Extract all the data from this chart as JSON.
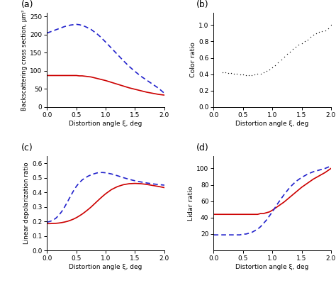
{
  "panel_labels": [
    "(a)",
    "(b)",
    "(c)",
    "(d)"
  ],
  "xlabel": "Distortion angle ξ, deg",
  "xlim": [
    0.0,
    2.0
  ],
  "xticks": [
    0.0,
    0.5,
    1.0,
    1.5,
    2.0
  ],
  "panel_a": {
    "ylabel": "Backscattering cross section, μm²",
    "ylim": [
      0,
      260
    ],
    "yticks": [
      0,
      50,
      100,
      150,
      200,
      250
    ],
    "red_x": [
      0.0,
      0.05,
      0.1,
      0.15,
      0.2,
      0.25,
      0.3,
      0.35,
      0.4,
      0.45,
      0.5,
      0.55,
      0.6,
      0.65,
      0.7,
      0.75,
      0.8,
      0.85,
      0.9,
      0.95,
      1.0,
      1.1,
      1.2,
      1.3,
      1.4,
      1.5,
      1.6,
      1.7,
      1.8,
      1.9,
      2.0
    ],
    "red_y": [
      87,
      87,
      87,
      87,
      87,
      87,
      87,
      87,
      87,
      87,
      87,
      86,
      86,
      85,
      84,
      83,
      81,
      79,
      77,
      75,
      73,
      68,
      63,
      58,
      53,
      49,
      45,
      41,
      38,
      35,
      33
    ],
    "blue_x": [
      0.0,
      0.05,
      0.1,
      0.15,
      0.2,
      0.25,
      0.3,
      0.35,
      0.4,
      0.45,
      0.5,
      0.55,
      0.6,
      0.65,
      0.7,
      0.75,
      0.8,
      0.85,
      0.9,
      0.95,
      1.0,
      1.1,
      1.2,
      1.3,
      1.4,
      1.5,
      1.6,
      1.7,
      1.8,
      1.9,
      2.0
    ],
    "blue_y": [
      204,
      207,
      210,
      213,
      216,
      219,
      222,
      224,
      226,
      227,
      228,
      227,
      225,
      222,
      218,
      214,
      208,
      202,
      195,
      187,
      179,
      162,
      145,
      128,
      112,
      98,
      85,
      74,
      63,
      52,
      38
    ]
  },
  "panel_b": {
    "ylabel": "Color ratio",
    "ylim": [
      0.0,
      1.15
    ],
    "yticks": [
      0.0,
      0.2,
      0.4,
      0.6,
      0.8,
      1.0
    ],
    "black_x": [
      0.15,
      0.2,
      0.25,
      0.3,
      0.35,
      0.4,
      0.45,
      0.5,
      0.55,
      0.6,
      0.65,
      0.7,
      0.75,
      0.8,
      0.85,
      0.9,
      0.95,
      1.0,
      1.05,
      1.1,
      1.15,
      1.2,
      1.25,
      1.3,
      1.35,
      1.4,
      1.45,
      1.5,
      1.55,
      1.6,
      1.65,
      1.7,
      1.75,
      1.8,
      1.85,
      1.9,
      1.95,
      2.0
    ],
    "black_y": [
      0.425,
      0.422,
      0.418,
      0.413,
      0.408,
      0.403,
      0.398,
      0.395,
      0.393,
      0.392,
      0.393,
      0.396,
      0.402,
      0.41,
      0.423,
      0.438,
      0.458,
      0.482,
      0.51,
      0.542,
      0.575,
      0.61,
      0.645,
      0.678,
      0.708,
      0.735,
      0.758,
      0.778,
      0.8,
      0.825,
      0.855,
      0.88,
      0.9,
      0.915,
      0.925,
      0.935,
      0.96,
      1.0
    ]
  },
  "panel_c": {
    "ylabel": "Linear depolarization ratio",
    "ylim": [
      0.0,
      0.65
    ],
    "yticks": [
      0.0,
      0.1,
      0.2,
      0.3,
      0.4,
      0.5,
      0.6
    ],
    "red_x": [
      0.0,
      0.05,
      0.1,
      0.15,
      0.2,
      0.25,
      0.3,
      0.35,
      0.4,
      0.45,
      0.5,
      0.55,
      0.6,
      0.65,
      0.7,
      0.75,
      0.8,
      0.85,
      0.9,
      0.95,
      1.0,
      1.1,
      1.2,
      1.3,
      1.4,
      1.5,
      1.6,
      1.7,
      1.8,
      1.9,
      2.0
    ],
    "red_y": [
      0.185,
      0.185,
      0.186,
      0.187,
      0.189,
      0.192,
      0.196,
      0.201,
      0.208,
      0.216,
      0.226,
      0.238,
      0.251,
      0.266,
      0.282,
      0.299,
      0.318,
      0.337,
      0.356,
      0.374,
      0.391,
      0.42,
      0.44,
      0.453,
      0.46,
      0.462,
      0.46,
      0.455,
      0.448,
      0.441,
      0.433
    ],
    "blue_x": [
      0.0,
      0.05,
      0.1,
      0.15,
      0.2,
      0.25,
      0.3,
      0.35,
      0.4,
      0.45,
      0.5,
      0.55,
      0.6,
      0.65,
      0.7,
      0.75,
      0.8,
      0.85,
      0.9,
      0.95,
      1.0,
      1.1,
      1.2,
      1.3,
      1.4,
      1.5,
      1.6,
      1.7,
      1.8,
      1.9,
      2.0
    ],
    "blue_y": [
      0.195,
      0.2,
      0.208,
      0.222,
      0.242,
      0.268,
      0.3,
      0.336,
      0.374,
      0.41,
      0.442,
      0.467,
      0.486,
      0.5,
      0.512,
      0.521,
      0.528,
      0.534,
      0.537,
      0.537,
      0.535,
      0.527,
      0.515,
      0.502,
      0.49,
      0.48,
      0.472,
      0.465,
      0.459,
      0.454,
      0.45
    ]
  },
  "panel_d": {
    "ylabel": "Lidar ratio",
    "ylim": [
      0,
      115
    ],
    "yticks": [
      20,
      40,
      60,
      80,
      100
    ],
    "red_x": [
      0.0,
      0.05,
      0.1,
      0.15,
      0.2,
      0.25,
      0.3,
      0.35,
      0.4,
      0.45,
      0.5,
      0.55,
      0.6,
      0.65,
      0.7,
      0.75,
      0.8,
      0.85,
      0.9,
      0.95,
      1.0,
      1.1,
      1.2,
      1.3,
      1.4,
      1.5,
      1.6,
      1.7,
      1.8,
      1.9,
      2.0
    ],
    "red_y": [
      44,
      44,
      44,
      44,
      44,
      44,
      44,
      44,
      44,
      44,
      44,
      44,
      44,
      44,
      44,
      44,
      45,
      45,
      46,
      47,
      49,
      54,
      59,
      65,
      71,
      77,
      82,
      87,
      91,
      95,
      100
    ],
    "blue_x": [
      0.0,
      0.05,
      0.1,
      0.15,
      0.2,
      0.25,
      0.3,
      0.35,
      0.4,
      0.45,
      0.5,
      0.55,
      0.6,
      0.65,
      0.7,
      0.75,
      0.8,
      0.85,
      0.9,
      0.95,
      1.0,
      1.1,
      1.2,
      1.3,
      1.4,
      1.5,
      1.6,
      1.7,
      1.8,
      1.9,
      2.0
    ],
    "blue_y": [
      19,
      19,
      19,
      19,
      19,
      19,
      19,
      19,
      19,
      19,
      20,
      20,
      21,
      22,
      24,
      26,
      29,
      33,
      37,
      42,
      47,
      58,
      68,
      77,
      84,
      89,
      93,
      96,
      98,
      100,
      103
    ]
  },
  "red_color": "#cc0000",
  "blue_color": "#2222cc",
  "black_color": "#111111",
  "line_width": 1.2,
  "dot_size": 2.0
}
